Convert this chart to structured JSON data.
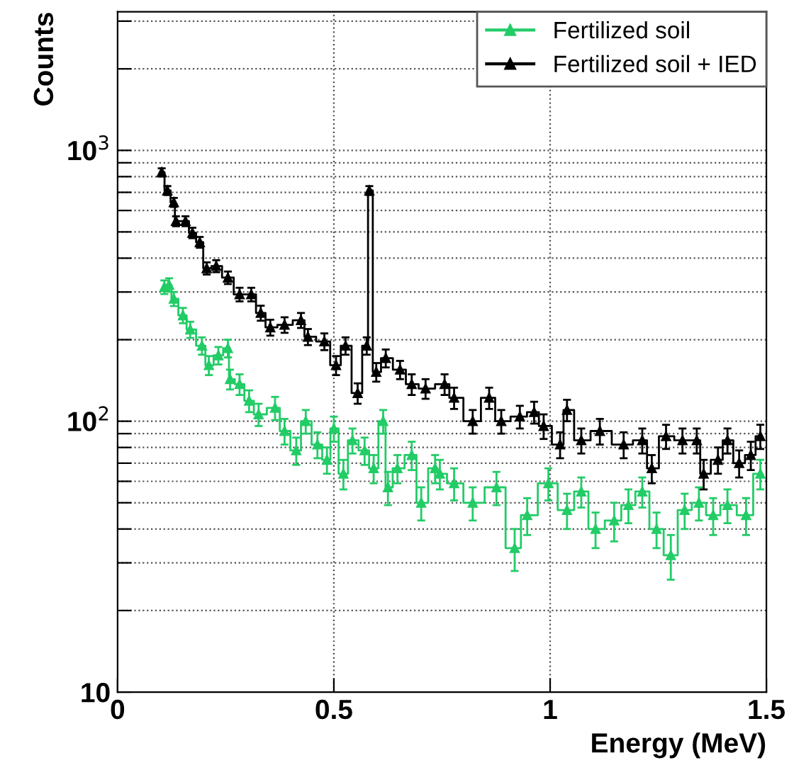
{
  "chart_data": {
    "type": "step",
    "xlabel": "Energy (MeV)",
    "ylabel": "Counts",
    "log": "y",
    "xlim": [
      0,
      1.5
    ],
    "xticks": [
      0,
      0.5,
      1,
      1.5
    ],
    "ylim": [
      10,
      3250
    ],
    "yticks": [
      {
        "value": 10,
        "label": "10"
      },
      {
        "value": 20,
        "label": null
      },
      {
        "value": 30,
        "label": null
      },
      {
        "value": 40,
        "label": null
      },
      {
        "value": 50,
        "label": null
      },
      {
        "value": 60,
        "label": null
      },
      {
        "value": 70,
        "label": null
      },
      {
        "value": 80,
        "label": null
      },
      {
        "value": 90,
        "label": null
      },
      {
        "value": 100,
        "label": "10$^{2}$"
      },
      {
        "value": 200,
        "label": null
      },
      {
        "value": 300,
        "label": null
      },
      {
        "value": 400,
        "label": null
      },
      {
        "value": 500,
        "label": null
      },
      {
        "value": 600,
        "label": null
      },
      {
        "value": 700,
        "label": null
      },
      {
        "value": 800,
        "label": null
      },
      {
        "value": 900,
        "label": null
      },
      {
        "value": 1000,
        "label": "10$^{3}$"
      },
      {
        "value": 2000,
        "label": null
      },
      {
        "value": 3000,
        "label": null
      }
    ],
    "grid": true,
    "legend": "top right",
    "marker": "triangle",
    "line_style": "solid",
    "series": [
      {
        "name": "Fertilized soil",
        "color": "#22cc66",
        "x": [
          0.108,
          0.119,
          0.13,
          0.151,
          0.168,
          0.195,
          0.211,
          0.233,
          0.255,
          0.26,
          0.282,
          0.304,
          0.326,
          0.364,
          0.386,
          0.413,
          0.435,
          0.462,
          0.484,
          0.5,
          0.522,
          0.543,
          0.571,
          0.592,
          0.614,
          0.625,
          0.647,
          0.68,
          0.702,
          0.734,
          0.745,
          0.778,
          0.821,
          0.876,
          0.918,
          0.947,
          0.996,
          1.039,
          1.072,
          1.105,
          1.148,
          1.181,
          1.213,
          1.246,
          1.279,
          1.311,
          1.344,
          1.377,
          1.41,
          1.453,
          1.486
        ],
        "values": [
          313,
          319,
          283,
          246,
          218,
          190,
          161,
          175,
          186,
          143,
          137,
          119,
          106,
          112,
          92,
          78,
          100,
          82,
          72,
          94,
          64,
          85,
          78,
          67,
          100,
          57,
          67,
          75,
          50,
          67,
          64,
          59,
          50,
          57,
          34,
          45,
          59,
          47,
          55,
          40,
          43,
          49,
          55,
          40,
          32,
          47,
          50,
          45,
          49,
          45,
          64
        ],
        "errors": [
          18,
          18,
          17,
          16,
          15,
          14,
          13,
          13,
          14,
          12,
          12,
          11,
          10,
          11,
          10,
          9,
          10,
          9,
          8,
          10,
          8,
          9,
          9,
          8,
          10,
          8,
          8,
          9,
          7,
          8,
          8,
          8,
          7,
          8,
          6,
          7,
          8,
          7,
          7,
          6,
          7,
          7,
          7,
          6,
          6,
          7,
          7,
          7,
          7,
          7,
          8
        ]
      },
      {
        "name": "Fertilized soil + IED",
        "color": "#000000",
        "x": [
          0.102,
          0.115,
          0.13,
          0.135,
          0.157,
          0.173,
          0.19,
          0.206,
          0.228,
          0.255,
          0.282,
          0.309,
          0.331,
          0.353,
          0.386,
          0.424,
          0.44,
          0.478,
          0.505,
          0.527,
          0.555,
          0.576,
          0.582,
          0.598,
          0.62,
          0.653,
          0.68,
          0.712,
          0.756,
          0.778,
          0.821,
          0.859,
          0.887,
          0.93,
          0.963,
          0.985,
          1.023,
          1.039,
          1.072,
          1.115,
          1.17,
          1.213,
          1.235,
          1.268,
          1.306,
          1.339,
          1.355,
          1.388,
          1.41,
          1.437,
          1.464,
          1.486
        ],
        "values": [
          830,
          711,
          643,
          548,
          548,
          496,
          458,
          367,
          374,
          339,
          294,
          294,
          251,
          222,
          227,
          236,
          205,
          197,
          161,
          190,
          127,
          190,
          711,
          152,
          171,
          155,
          137,
          132,
          137,
          122,
          100,
          122,
          100,
          104,
          108,
          96,
          82,
          110,
          85,
          92,
          82,
          85,
          67,
          88,
          85,
          85,
          64,
          72,
          85,
          70,
          75,
          88
        ],
        "errors": [
          29,
          27,
          25,
          23,
          23,
          22,
          21,
          19,
          19,
          18,
          17,
          17,
          16,
          15,
          15,
          15,
          14,
          14,
          13,
          14,
          11,
          14,
          27,
          12,
          13,
          12,
          12,
          11,
          12,
          11,
          10,
          11,
          10,
          10,
          10,
          10,
          9,
          10,
          9,
          10,
          9,
          9,
          8,
          9,
          9,
          9,
          8,
          8,
          9,
          8,
          9,
          9
        ]
      }
    ]
  }
}
